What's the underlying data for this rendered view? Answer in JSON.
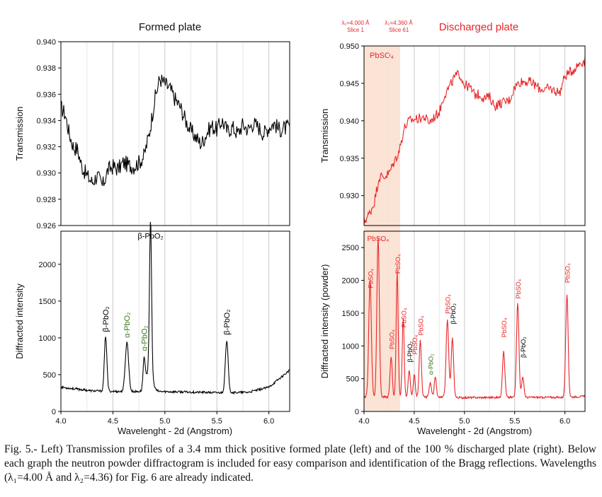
{
  "chart_data": [
    {
      "id": "left",
      "type": "line",
      "title": "Formed plate",
      "color": "#000000",
      "xlabel": "Wavelenght - 2d (Angstrom)",
      "xlim": [
        4.0,
        6.2
      ],
      "x_ticks": [
        "4.0",
        "4.5",
        "5.0",
        "5.5",
        "6.0"
      ],
      "top": {
        "ylabel": "Transmission",
        "ylim": [
          0.926,
          0.94
        ],
        "y_ticks": [
          "0.926",
          "0.928",
          "0.930",
          "0.932",
          "0.934",
          "0.936",
          "0.938",
          "0.940"
        ],
        "points": [
          [
            4.0,
            0.935
          ],
          [
            4.04,
            0.9345
          ],
          [
            4.08,
            0.933
          ],
          [
            4.12,
            0.932
          ],
          [
            4.16,
            0.9318
          ],
          [
            4.2,
            0.9305
          ],
          [
            4.25,
            0.9298
          ],
          [
            4.3,
            0.9293
          ],
          [
            4.35,
            0.9298
          ],
          [
            4.4,
            0.929
          ],
          [
            4.45,
            0.9302
          ],
          [
            4.5,
            0.9305
          ],
          [
            4.55,
            0.9303
          ],
          [
            4.6,
            0.9308
          ],
          [
            4.65,
            0.9306
          ],
          [
            4.7,
            0.9305
          ],
          [
            4.75,
            0.9308
          ],
          [
            4.8,
            0.9313
          ],
          [
            4.85,
            0.933
          ],
          [
            4.9,
            0.9355
          ],
          [
            4.95,
            0.9372
          ],
          [
            5.0,
            0.9368
          ],
          [
            5.05,
            0.9364
          ],
          [
            5.1,
            0.9356
          ],
          [
            5.15,
            0.935
          ],
          [
            5.2,
            0.934
          ],
          [
            5.25,
            0.9332
          ],
          [
            5.3,
            0.9327
          ],
          [
            5.35,
            0.9322
          ],
          [
            5.4,
            0.933
          ],
          [
            5.45,
            0.9336
          ],
          [
            5.5,
            0.9333
          ],
          [
            5.55,
            0.934
          ],
          [
            5.6,
            0.9332
          ],
          [
            5.65,
            0.9335
          ],
          [
            5.7,
            0.933
          ],
          [
            5.75,
            0.9337
          ],
          [
            5.8,
            0.9333
          ],
          [
            5.85,
            0.9338
          ],
          [
            5.9,
            0.9335
          ],
          [
            5.95,
            0.933
          ],
          [
            6.0,
            0.9335
          ],
          [
            6.05,
            0.9338
          ],
          [
            6.1,
            0.9333
          ],
          [
            6.2,
            0.9335
          ]
        ]
      },
      "bottom": {
        "ylabel": "Diffracted intensity",
        "ylim": [
          0,
          2450
        ],
        "y_ticks": [
          "0",
          "500",
          "1000",
          "1500",
          "2000"
        ],
        "peaks": [
          [
            4.43,
            750,
            0.012
          ],
          [
            4.635,
            670,
            0.016
          ],
          [
            4.8,
            400,
            0.01
          ],
          [
            4.862,
            2050,
            0.01
          ],
          [
            4.85,
            300,
            0.03
          ],
          [
            5.595,
            690,
            0.014
          ]
        ],
        "baseline": [
          [
            4.0,
            330
          ],
          [
            4.3,
            280
          ],
          [
            4.6,
            270
          ],
          [
            5.0,
            270
          ],
          [
            5.5,
            255
          ],
          [
            5.8,
            260
          ],
          [
            6.0,
            330
          ],
          [
            6.2,
            560
          ]
        ],
        "labels": [
          {
            "text": "β-PbO₂",
            "x": 4.43,
            "y": 1080,
            "color": "#000000",
            "rotate": true
          },
          {
            "text": "α-PbO₂",
            "x": 4.635,
            "y": 1000,
            "color": "#3a7a1f",
            "rotate": true
          },
          {
            "text": "α-PbO₂",
            "x": 4.8,
            "y": 820,
            "color": "#3a7a1f",
            "rotate": true
          },
          {
            "text": "β-PbO₂",
            "x": 4.862,
            "y": 2350,
            "color": "#000000",
            "rotate": false
          },
          {
            "text": "β-PbO₂",
            "x": 5.595,
            "y": 1040,
            "color": "#000000",
            "rotate": true
          }
        ]
      }
    },
    {
      "id": "right",
      "type": "line",
      "title": "Discharged plate",
      "color": "#e8262a",
      "xlabel": "Wavelenght - 2d (Angstrom)",
      "xlim": [
        4.0,
        6.2
      ],
      "x_ticks": [
        "4.0",
        "4.5",
        "5.0",
        "5.5",
        "6.0"
      ],
      "band": {
        "x0": 4.0,
        "x1": 4.36,
        "label": "PbSO₄"
      },
      "annotations": [
        {
          "line1": "λ₁=4.000 Å",
          "line2": "Slice 1"
        },
        {
          "line1": "λ₂=4.360 Å",
          "line2": "Slice 61"
        }
      ],
      "top": {
        "ylabel": "Transmission",
        "ylim": [
          0.926,
          0.95
        ],
        "y_ticks": [
          "0.930",
          "0.935",
          "0.940",
          "0.945",
          "0.950"
        ],
        "points": [
          [
            4.0,
            0.9265
          ],
          [
            4.05,
            0.9275
          ],
          [
            4.1,
            0.929
          ],
          [
            4.15,
            0.9325
          ],
          [
            4.2,
            0.9325
          ],
          [
            4.25,
            0.933
          ],
          [
            4.3,
            0.9345
          ],
          [
            4.35,
            0.936
          ],
          [
            4.4,
            0.939
          ],
          [
            4.45,
            0.94
          ],
          [
            4.5,
            0.9402
          ],
          [
            4.55,
            0.9403
          ],
          [
            4.6,
            0.9405
          ],
          [
            4.65,
            0.9398
          ],
          [
            4.7,
            0.9405
          ],
          [
            4.75,
            0.9412
          ],
          [
            4.8,
            0.9435
          ],
          [
            4.85,
            0.9445
          ],
          [
            4.9,
            0.9458
          ],
          [
            4.95,
            0.9463
          ],
          [
            5.0,
            0.9448
          ],
          [
            5.05,
            0.9445
          ],
          [
            5.1,
            0.9435
          ],
          [
            5.15,
            0.9435
          ],
          [
            5.2,
            0.943
          ],
          [
            5.25,
            0.9432
          ],
          [
            5.3,
            0.942
          ],
          [
            5.35,
            0.9423
          ],
          [
            5.4,
            0.9425
          ],
          [
            5.45,
            0.9428
          ],
          [
            5.5,
            0.9445
          ],
          [
            5.55,
            0.9452
          ],
          [
            5.6,
            0.9453
          ],
          [
            5.65,
            0.9452
          ],
          [
            5.7,
            0.9448
          ],
          [
            5.75,
            0.9443
          ],
          [
            5.8,
            0.9442
          ],
          [
            5.85,
            0.9443
          ],
          [
            5.9,
            0.944
          ],
          [
            5.95,
            0.9438
          ],
          [
            6.0,
            0.946
          ],
          [
            6.05,
            0.9465
          ],
          [
            6.1,
            0.947
          ],
          [
            6.15,
            0.9478
          ],
          [
            6.2,
            0.948
          ]
        ]
      },
      "bottom": {
        "ylabel": "Diffracted intensity (powder)",
        "ylim": [
          0,
          2750
        ],
        "y_ticks": [
          "0",
          "500",
          "1000",
          "1500",
          "2000",
          "2500"
        ],
        "peaks": [
          [
            4.06,
            1790,
            0.013
          ],
          [
            4.14,
            2440,
            0.012
          ],
          [
            4.27,
            620,
            0.011
          ],
          [
            4.33,
            1920,
            0.01
          ],
          [
            4.39,
            1200,
            0.01
          ],
          [
            4.45,
            420,
            0.01
          ],
          [
            4.5,
            350,
            0.01
          ],
          [
            4.56,
            860,
            0.011
          ],
          [
            4.66,
            220,
            0.012
          ],
          [
            4.71,
            320,
            0.01
          ],
          [
            4.83,
            1180,
            0.013
          ],
          [
            4.88,
            900,
            0.012
          ],
          [
            5.39,
            700,
            0.012
          ],
          [
            5.53,
            1450,
            0.012
          ],
          [
            5.58,
            300,
            0.012
          ],
          [
            6.02,
            1580,
            0.012
          ]
        ],
        "baseline": [
          [
            4.0,
            220
          ],
          [
            4.5,
            220
          ],
          [
            5.0,
            210
          ],
          [
            5.5,
            215
          ],
          [
            6.0,
            215
          ],
          [
            6.2,
            230
          ]
        ],
        "labels": [
          {
            "text": "PbSO₄",
            "x": 4.14,
            "y": 2600,
            "color": "#e8262a",
            "rotate": false
          },
          {
            "text": "PbSO₄",
            "x": 4.06,
            "y": 1880,
            "color": "#e8262a",
            "rotate": true
          },
          {
            "text": "PbSO₄",
            "x": 4.27,
            "y": 950,
            "color": "#e8262a",
            "rotate": true
          },
          {
            "text": "PbSO₄",
            "x": 4.33,
            "y": 2100,
            "color": "#e8262a",
            "rotate": true
          },
          {
            "text": "PbSO₄",
            "x": 4.39,
            "y": 1280,
            "color": "#e8262a",
            "rotate": true
          },
          {
            "text": "β-PbO₂",
            "x": 4.45,
            "y": 750,
            "color": "#000000",
            "rotate": true
          },
          {
            "text": "PbSO₄",
            "x": 4.5,
            "y": 870,
            "color": "#e8262a",
            "rotate": true
          },
          {
            "text": "PbSO₄",
            "x": 4.56,
            "y": 1160,
            "color": "#e8262a",
            "rotate": true
          },
          {
            "text": "α-PbO₂",
            "x": 4.66,
            "y": 560,
            "color": "#3a7a1f",
            "rotate": true
          },
          {
            "text": "PbSO₄",
            "x": 4.83,
            "y": 1490,
            "color": "#e8262a",
            "rotate": true
          },
          {
            "text": "β-PbO₂",
            "x": 4.88,
            "y": 1330,
            "color": "#000000",
            "rotate": true
          },
          {
            "text": "PbSO₄",
            "x": 5.39,
            "y": 1130,
            "color": "#e8262a",
            "rotate": true
          },
          {
            "text": "PbSO₄",
            "x": 5.53,
            "y": 1720,
            "color": "#e8262a",
            "rotate": true
          },
          {
            "text": "β-PbO₂",
            "x": 5.58,
            "y": 820,
            "color": "#000000",
            "rotate": true
          },
          {
            "text": "PbSO₄",
            "x": 6.02,
            "y": 1960,
            "color": "#e8262a",
            "rotate": true
          }
        ]
      }
    }
  ],
  "caption": "Fig. 5.- Left) Transmission profiles of a 3.4 mm thick positive formed plate (left) and of the 100 % discharged plate (right). Below each graph the neutron powder diffractogram is included for easy comparison and identification of the Bragg reflections. Wavelengths (λ₁=4.00 Å and λ₂=4.36) for Fig. 6 are already indicated."
}
